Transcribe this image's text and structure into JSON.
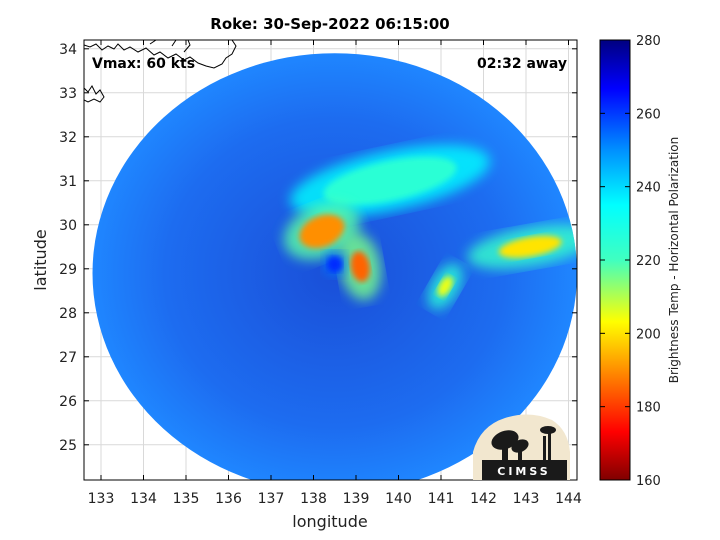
{
  "chart_data": {
    "type": "heatmap",
    "title": "Roke: 30-Sep-2022 06:15:00",
    "xlabel": "longitude",
    "ylabel": "latitude",
    "xlim": [
      132.6,
      144.2
    ],
    "ylim": [
      24.2,
      34.2
    ],
    "x_ticks": [
      133,
      134,
      135,
      136,
      137,
      138,
      139,
      140,
      141,
      142,
      143,
      144
    ],
    "y_ticks": [
      25,
      26,
      27,
      28,
      29,
      30,
      31,
      32,
      33,
      34
    ],
    "grid": true,
    "annotations": {
      "vmax": "Vmax: 60 kts",
      "away": "02:32 away"
    },
    "colorbar": {
      "label": "Brightness Temp - Horizontal Polarization",
      "range": [
        160,
        280
      ],
      "ticks": [
        160,
        180,
        200,
        220,
        240,
        260,
        280
      ],
      "colormap": "jet"
    },
    "swath": {
      "center": [
        138.5,
        28.9
      ],
      "radius_deg_lon": 5.7,
      "radius_deg_lat": 5.0
    },
    "features": [
      {
        "name": "northern eyewall",
        "lon": 138.2,
        "lat": 29.85,
        "tb": 190
      },
      {
        "name": "eyewall south arc",
        "lon": 139.1,
        "lat": 29.05,
        "tb": 185
      },
      {
        "name": "eye",
        "lon": 138.5,
        "lat": 29.1,
        "tb": 262
      },
      {
        "name": "eastern rainband",
        "lon": 143.1,
        "lat": 29.5,
        "tb": 200
      },
      {
        "name": "convective cell",
        "lon": 141.1,
        "lat": 28.6,
        "tb": 205
      },
      {
        "name": "northeast band",
        "lon": 139.8,
        "lat": 31.0,
        "tb": 225
      }
    ],
    "background_tb": 245,
    "logo": "CIMSS"
  },
  "colors": {
    "axes_border": "#000000",
    "grid": "#d9d9d9",
    "land_outline": "#000000"
  }
}
